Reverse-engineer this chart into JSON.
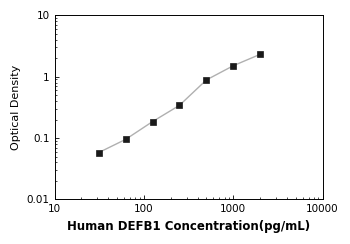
{
  "x_data": [
    31.25,
    62.5,
    125,
    250,
    500,
    1000,
    2000
  ],
  "y_data": [
    0.058,
    0.095,
    0.185,
    0.34,
    0.88,
    1.5,
    2.3
  ],
  "xlim": [
    20,
    8000
  ],
  "ylim": [
    0.01,
    10
  ],
  "xlabel": "Human DEFB1 Concentration(pg/mL)",
  "ylabel": "Optical Density",
  "line_color": "#b0b0b0",
  "marker_color": "#1a1a1a",
  "marker": "s",
  "marker_size": 4.5,
  "line_width": 1.0,
  "xlabel_fontsize": 8.5,
  "ylabel_fontsize": 8,
  "tick_fontsize": 7.5,
  "background_color": "#ffffff",
  "xticks": [
    10,
    100,
    1000,
    10000
  ],
  "yticks": [
    0.01,
    0.1,
    1,
    10
  ],
  "ytick_labels": [
    "0.01",
    "0.1",
    "1",
    "10"
  ],
  "xtick_labels": [
    "10",
    "100",
    "1000",
    "10000"
  ]
}
